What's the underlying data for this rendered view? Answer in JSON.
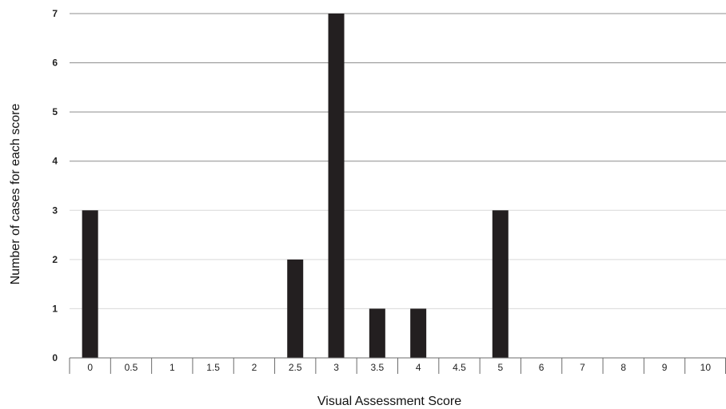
{
  "chart_data": {
    "type": "bar",
    "categories": [
      "0",
      "0.5",
      "1",
      "1.5",
      "2",
      "2.5",
      "3",
      "3.5",
      "4",
      "4.5",
      "5",
      "6",
      "7",
      "8",
      "9",
      "10"
    ],
    "values": [
      3,
      0,
      0,
      0,
      0,
      2,
      7,
      1,
      1,
      0,
      3,
      0,
      0,
      0,
      0,
      0
    ],
    "title": "",
    "xlabel": "Visual Assessment Score",
    "ylabel": "Number of cases for each score",
    "ylim": [
      0,
      7
    ],
    "yticks": [
      "0",
      "1",
      "2",
      "3",
      "4",
      "5",
      "6",
      "7"
    ],
    "grid": true,
    "bar_color": "#231f20"
  }
}
